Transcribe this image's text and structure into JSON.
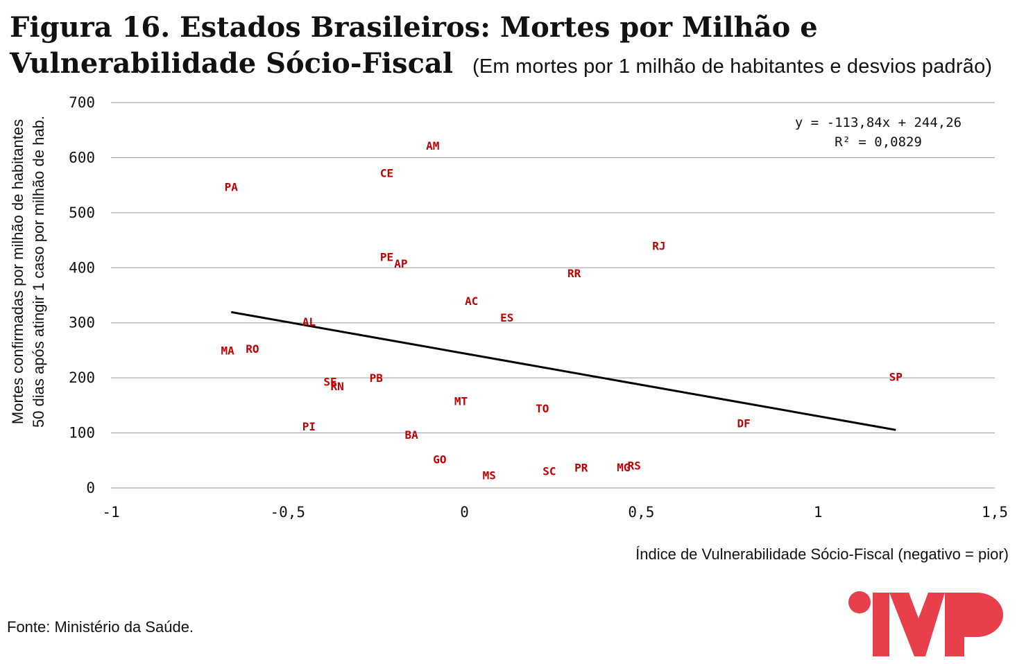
{
  "header": {
    "title": "Figura 16. Estados Brasileiros: Mortes por Milhão e Vulnerabilidade Sócio-Fiscal",
    "subtitle": "(Em mortes por 1 milhão de habitantes e desvios padrão)"
  },
  "footer": {
    "source": "Fonte: Ministério da Saúde."
  },
  "chart_data": {
    "type": "scatter",
    "xlabel": "Índice de Vulnerabilidade Sócio-Fiscal (negativo = pior)",
    "ylabel_lines": [
      "Mortes confirmadas por milhão de habitantes",
      "50 dias após atingir 1 caso por milhão de hab."
    ],
    "xlim": [
      -1,
      1.5
    ],
    "ylim": [
      0,
      700
    ],
    "x_ticks": [
      -1,
      -0.5,
      0,
      0.5,
      1,
      1.5
    ],
    "x_tick_labels": [
      "-1",
      "-0,5",
      "0",
      "0,5",
      "1",
      "1,5"
    ],
    "y_ticks": [
      0,
      100,
      200,
      300,
      400,
      500,
      600,
      700
    ],
    "y_tick_labels": [
      "0",
      "100",
      "200",
      "300",
      "400",
      "500",
      "600",
      "700"
    ],
    "grid": "horizontal",
    "trendline": {
      "slope": -113.84,
      "intercept": 244.26,
      "x_range": [
        -0.66,
        1.22
      ],
      "equation": "y = -113,84x + 244,26",
      "r2": "R² = 0,0829",
      "color": "#000000"
    },
    "label_color": "#c00000",
    "points": [
      {
        "label": "AM",
        "x": -0.09,
        "y": 622
      },
      {
        "label": "CE",
        "x": -0.22,
        "y": 572
      },
      {
        "label": "PA",
        "x": -0.66,
        "y": 547
      },
      {
        "label": "RJ",
        "x": 0.55,
        "y": 440
      },
      {
        "label": "PE",
        "x": -0.22,
        "y": 420
      },
      {
        "label": "AP",
        "x": -0.18,
        "y": 408
      },
      {
        "label": "RR",
        "x": 0.31,
        "y": 390
      },
      {
        "label": "AC",
        "x": 0.02,
        "y": 340
      },
      {
        "label": "ES",
        "x": 0.12,
        "y": 310
      },
      {
        "label": "AL",
        "x": -0.44,
        "y": 302
      },
      {
        "label": "MA",
        "x": -0.67,
        "y": 250
      },
      {
        "label": "RO",
        "x": -0.6,
        "y": 253
      },
      {
        "label": "SP",
        "x": 1.22,
        "y": 202
      },
      {
        "label": "PB",
        "x": -0.25,
        "y": 200
      },
      {
        "label": "SE",
        "x": -0.38,
        "y": 193
      },
      {
        "label": "RN",
        "x": -0.36,
        "y": 185
      },
      {
        "label": "MT",
        "x": -0.01,
        "y": 158
      },
      {
        "label": "TO",
        "x": 0.22,
        "y": 145
      },
      {
        "label": "DF",
        "x": 0.79,
        "y": 118
      },
      {
        "label": "PI",
        "x": -0.44,
        "y": 112
      },
      {
        "label": "BA",
        "x": -0.15,
        "y": 97
      },
      {
        "label": "GO",
        "x": -0.07,
        "y": 52
      },
      {
        "label": "MG",
        "x": 0.45,
        "y": 38
      },
      {
        "label": "RS",
        "x": 0.48,
        "y": 41
      },
      {
        "label": "PR",
        "x": 0.33,
        "y": 37
      },
      {
        "label": "SC",
        "x": 0.24,
        "y": 31
      },
      {
        "label": "MS",
        "x": 0.07,
        "y": 23
      }
    ]
  },
  "logo": {
    "name": "ifi-logo",
    "color": "#e8404a"
  }
}
